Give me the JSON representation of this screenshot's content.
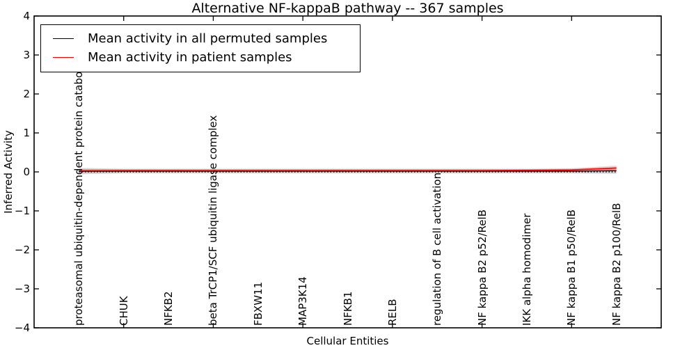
{
  "figure": {
    "background": "#ffffff",
    "frame_color": "#000000"
  },
  "legend": {
    "entries": [
      {
        "label": "Mean activity in all permuted samples",
        "color": "#000000"
      },
      {
        "label": "Mean activity in patient samples",
        "color": "#ff0000"
      }
    ]
  },
  "chart_data": {
    "type": "line",
    "title": "Alternative NF-kappaB pathway -- 367 samples",
    "xlabel": "Cellular Entities",
    "ylabel": "Inferred Activity",
    "ylim": [
      -4,
      4
    ],
    "xlim": [
      0,
      14
    ],
    "grid": false,
    "legend_position": "upper left",
    "yticks": [
      4,
      3,
      2,
      1,
      0,
      -1,
      -2,
      -3,
      -4
    ],
    "ytick_labels": [
      "4",
      "3",
      "2",
      "1",
      "0",
      "−1",
      "−2",
      "−3",
      "−4"
    ],
    "unlabeled_xticks": [
      2,
      4,
      6,
      8,
      10,
      12
    ],
    "categories": [
      "proteasomal ubiquitin-dependent protein catabolic pr",
      "CHUK",
      "NFKB2",
      "beta TrCP1/SCF ubiquitin ligase complex",
      "FBXW11",
      "MAP3K14",
      "NFKB1",
      "RELB",
      "regulation of B cell activation",
      "NF kappa B2 p52/RelB",
      "IKK alpha homodimer",
      "NF kappa B1 p50/RelB",
      "NF kappa B2 p100/RelB"
    ],
    "category_x": [
      1,
      2,
      3,
      4,
      5,
      6,
      7,
      8,
      9,
      10,
      11,
      12,
      13
    ],
    "zero_line": {
      "y": 0,
      "style": "dotted",
      "color": "#000000"
    },
    "series": [
      {
        "name": "Mean activity in all permuted samples",
        "color": "#000000",
        "band_color": "rgba(0,0,0,0.16)",
        "values": [
          0.015,
          0.02,
          0.02,
          0.02,
          0.02,
          0.02,
          0.02,
          0.02,
          0.02,
          0.02,
          0.02,
          0.02,
          0.03
        ],
        "band_upper": [
          0.1,
          0.08,
          0.08,
          0.08,
          0.08,
          0.08,
          0.08,
          0.08,
          0.08,
          0.08,
          0.08,
          0.08,
          0.1
        ],
        "band_lower": [
          -0.06,
          -0.04,
          -0.04,
          -0.04,
          -0.04,
          -0.04,
          -0.04,
          -0.04,
          -0.04,
          -0.04,
          -0.04,
          -0.04,
          -0.05
        ]
      },
      {
        "name": "Mean activity in patient samples",
        "color": "#ff0000",
        "band_color": "rgba(255,0,0,0.22)",
        "values": [
          0.03,
          0.035,
          0.035,
          0.035,
          0.035,
          0.035,
          0.035,
          0.035,
          0.035,
          0.035,
          0.04,
          0.05,
          0.1
        ],
        "band_upper": [
          0.07,
          0.07,
          0.07,
          0.07,
          0.07,
          0.07,
          0.07,
          0.07,
          0.07,
          0.07,
          0.07,
          0.09,
          0.16
        ],
        "band_lower": [
          -0.01,
          0.0,
          0.0,
          0.0,
          0.0,
          0.0,
          0.0,
          0.0,
          0.0,
          0.0,
          0.0,
          0.01,
          0.04
        ]
      }
    ]
  }
}
